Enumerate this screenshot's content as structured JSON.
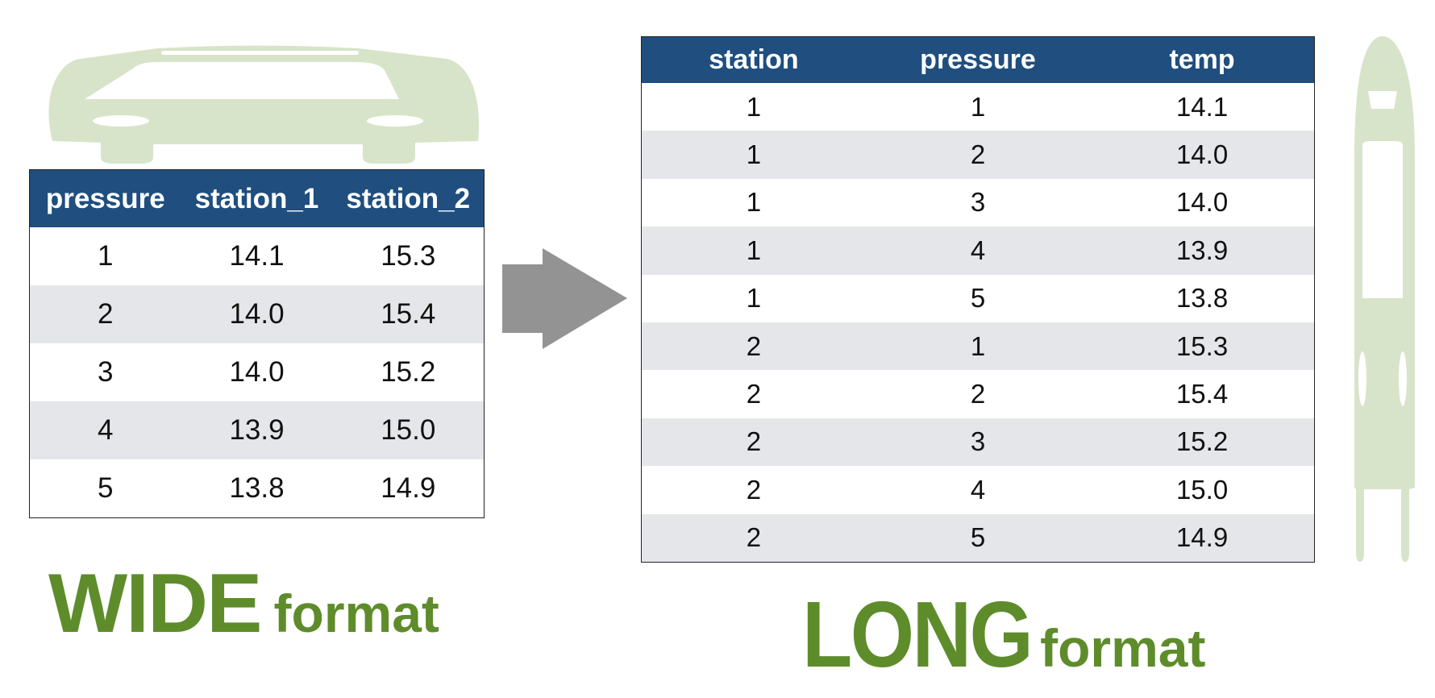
{
  "colors": {
    "header_bg": "#1f4e7f",
    "alt_row_bg": "#e5e6ea",
    "caption_green": "#5e8c2b",
    "silhouette_green": "#d8e4c9",
    "arrow_gray": "#939393"
  },
  "icons": [
    "wide-car-silhouette-icon",
    "right-arrow-icon",
    "tall-car-silhouette-icon"
  ],
  "wide": {
    "headers": [
      "pressure",
      "station_1",
      "station_2"
    ],
    "rows": [
      [
        "1",
        "14.1",
        "15.3"
      ],
      [
        "2",
        "14.0",
        "15.4"
      ],
      [
        "3",
        "14.0",
        "15.2"
      ],
      [
        "4",
        "13.9",
        "15.0"
      ],
      [
        "5",
        "13.8",
        "14.9"
      ]
    ],
    "caption_big": "WIDE",
    "caption_small": "format"
  },
  "long": {
    "headers": [
      "station",
      "pressure",
      "temp"
    ],
    "rows": [
      [
        "1",
        "1",
        "14.1"
      ],
      [
        "1",
        "2",
        "14.0"
      ],
      [
        "1",
        "3",
        "14.0"
      ],
      [
        "1",
        "4",
        "13.9"
      ],
      [
        "1",
        "5",
        "13.8"
      ],
      [
        "2",
        "1",
        "15.3"
      ],
      [
        "2",
        "2",
        "15.4"
      ],
      [
        "2",
        "3",
        "15.2"
      ],
      [
        "2",
        "4",
        "15.0"
      ],
      [
        "2",
        "5",
        "14.9"
      ]
    ],
    "caption_big": "LONG",
    "caption_small": "format"
  }
}
